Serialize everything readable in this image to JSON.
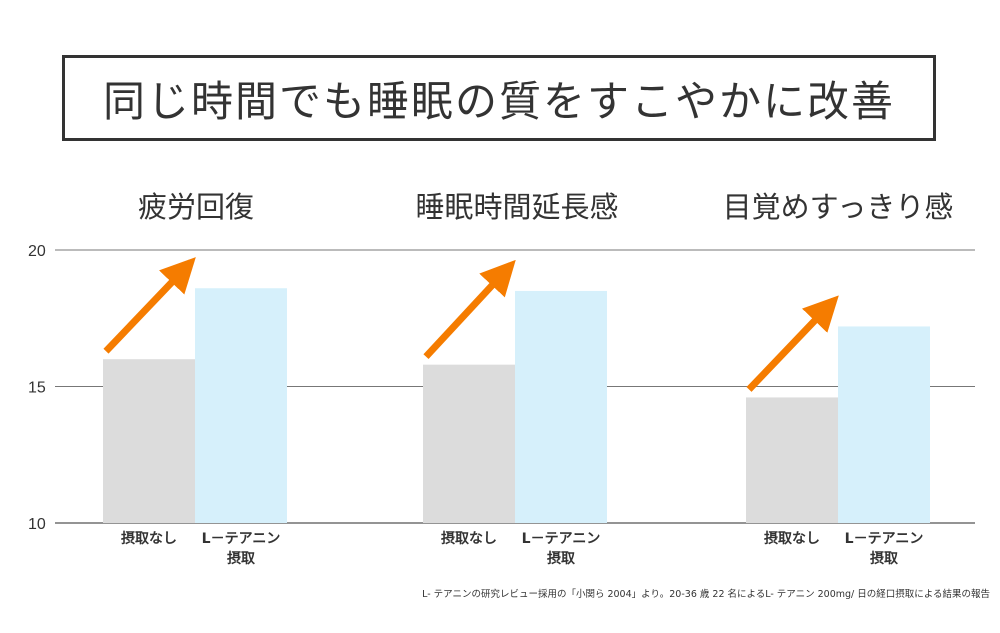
{
  "title": "同じ時間でも睡眠の質をすこやかに改善",
  "footnote": "L- テアニンの研究レビュー採用の「小関ら 2004」より。20-36 歳 22 名によるL- テアニン 200mg/ 日の経口摂取による結果の報告",
  "chart_data": {
    "type": "bar",
    "ylim": [
      10,
      20
    ],
    "yticks": [
      10,
      15,
      20
    ],
    "grid": true,
    "colors": {
      "摂取なし": "#dcdcdc",
      "L－テアニン摂取": "#d6f0fb",
      "arrow": "#f57c00"
    },
    "panels": [
      {
        "title": "疲労回復",
        "categories": [
          "摂取なし",
          "L－テアニン摂取"
        ],
        "category_lines": [
          [
            "摂取なし"
          ],
          [
            "L－テアニン",
            "摂取"
          ]
        ],
        "values": [
          16.0,
          18.6
        ]
      },
      {
        "title": "睡眠時間延長感",
        "categories": [
          "摂取なし",
          "L－テアニン摂取"
        ],
        "category_lines": [
          [
            "摂取なし"
          ],
          [
            "L－テアニン",
            "摂取"
          ]
        ],
        "values": [
          15.8,
          18.5
        ]
      },
      {
        "title": "目覚めすっきり感",
        "categories": [
          "摂取なし",
          "L－テアニン摂取"
        ],
        "category_lines": [
          [
            "摂取なし"
          ],
          [
            "L－テアニン",
            "摂取"
          ]
        ],
        "values": [
          14.6,
          17.2
        ]
      }
    ]
  }
}
